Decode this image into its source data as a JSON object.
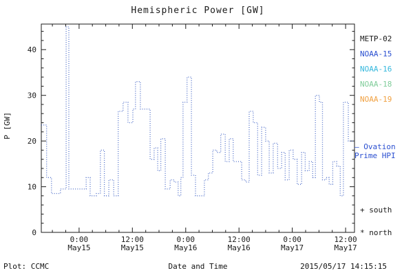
{
  "title": "Hemispheric Power [GW]",
  "footer": {
    "plot_credit": "Plot: CCMC",
    "xlabel": "Date and Time",
    "timestamp": "2015/05/17 14:15:15"
  },
  "legend": {
    "satellites": [
      {
        "label": "METP-02",
        "color": "#1a1a1a"
      },
      {
        "label": "NOAA-15",
        "color": "#2a4fd0"
      },
      {
        "label": "NOAA-16",
        "color": "#35b8dd"
      },
      {
        "label": "NOAA-18",
        "color": "#7fcc99"
      },
      {
        "label": "NOAA-19",
        "color": "#f0a040"
      }
    ],
    "ovation_line1": "— Ovation",
    "ovation_line2": "Prime HPI",
    "ovation_color": "#2a4fd0",
    "south_marker": "+ south",
    "north_marker": "* north"
  },
  "chart_data": {
    "type": "line",
    "style": "dotted-step",
    "title": "Hemispheric Power [GW]",
    "xlabel": "Date and Time",
    "ylabel": "P [GW]",
    "ylim": [
      0,
      45.6
    ],
    "yticks": [
      0,
      10,
      20,
      30,
      40
    ],
    "y_minor_step": 2,
    "x_hours_range": [
      -8.5,
      62
    ],
    "x_minor_step_hours": 3,
    "x_hours_origin": "2015-05-15 00:00",
    "xticks": [
      {
        "t": 0,
        "label_time": "0:00",
        "label_date": "May15"
      },
      {
        "t": 12,
        "label_time": "12:00",
        "label_date": "May15"
      },
      {
        "t": 24,
        "label_time": "0:00",
        "label_date": "May16"
      },
      {
        "t": 36,
        "label_time": "12:00",
        "label_date": "May16"
      },
      {
        "t": 48,
        "label_time": "0:00",
        "label_date": "May17"
      },
      {
        "t": 60,
        "label_time": "12:00",
        "label_date": "May17"
      }
    ],
    "line_color": "#4a6bc8",
    "grid": false,
    "legend_position": "right",
    "series": [
      {
        "name": "Ovation Prime HPI",
        "units": "GW",
        "points": [
          [
            -8.5,
            23.5
          ],
          [
            -7.3,
            12
          ],
          [
            -6.2,
            8.5
          ],
          [
            -4.2,
            9.5
          ],
          [
            -2.9,
            45
          ],
          [
            -2.3,
            9.5
          ],
          [
            0.5,
            9.5
          ],
          [
            1.6,
            12
          ],
          [
            2.5,
            8
          ],
          [
            3.9,
            8.5
          ],
          [
            4.8,
            18
          ],
          [
            5.7,
            8
          ],
          [
            6.7,
            11.5
          ],
          [
            7.8,
            8
          ],
          [
            8.8,
            26.5
          ],
          [
            9.9,
            28.5
          ],
          [
            11.0,
            24
          ],
          [
            12.1,
            27
          ],
          [
            12.7,
            33
          ],
          [
            13.8,
            27
          ],
          [
            14.9,
            27
          ],
          [
            16.0,
            16
          ],
          [
            16.9,
            18.5
          ],
          [
            17.7,
            13.5
          ],
          [
            18.4,
            20.5
          ],
          [
            19.4,
            9.5
          ],
          [
            20.5,
            11.5
          ],
          [
            21.4,
            11
          ],
          [
            22.3,
            8
          ],
          [
            22.9,
            12
          ],
          [
            23.4,
            28.5
          ],
          [
            24.3,
            34
          ],
          [
            25.3,
            12.5
          ],
          [
            26.2,
            8
          ],
          [
            27.3,
            8
          ],
          [
            28.2,
            11.5
          ],
          [
            29.1,
            13
          ],
          [
            30.1,
            18
          ],
          [
            31.0,
            17.5
          ],
          [
            31.9,
            21.5
          ],
          [
            32.9,
            15.5
          ],
          [
            33.8,
            20.5
          ],
          [
            34.7,
            15.5
          ],
          [
            35.7,
            15.5
          ],
          [
            36.6,
            11.5
          ],
          [
            37.5,
            11
          ],
          [
            38.3,
            26.5
          ],
          [
            39.2,
            24
          ],
          [
            40.2,
            12.5
          ],
          [
            41.1,
            23
          ],
          [
            42.0,
            20
          ],
          [
            42.8,
            13
          ],
          [
            43.7,
            19.5
          ],
          [
            44.7,
            14
          ],
          [
            45.6,
            17.5
          ],
          [
            46.4,
            11.5
          ],
          [
            47.3,
            18
          ],
          [
            48.2,
            16
          ],
          [
            49.1,
            10.5
          ],
          [
            50.1,
            17.5
          ],
          [
            50.9,
            13.5
          ],
          [
            51.8,
            15.5
          ],
          [
            52.6,
            12
          ],
          [
            53.2,
            30
          ],
          [
            54.1,
            28.5
          ],
          [
            54.8,
            11.5
          ],
          [
            55.6,
            12
          ],
          [
            56.3,
            10.5
          ],
          [
            57.1,
            15.5
          ],
          [
            58.0,
            14.5
          ],
          [
            58.8,
            8
          ],
          [
            59.5,
            28.5
          ],
          [
            60.6,
            20
          ]
        ]
      }
    ]
  }
}
